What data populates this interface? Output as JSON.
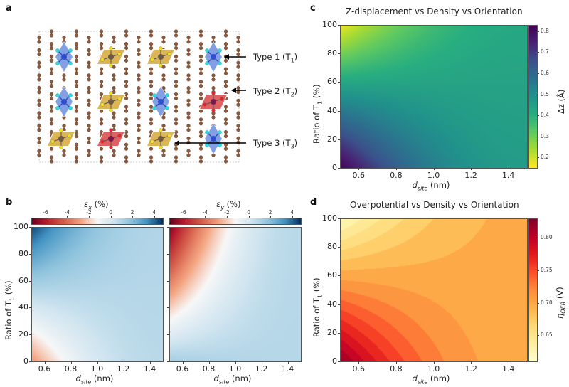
{
  "figure": {
    "panel_labels": [
      "a",
      "b",
      "c",
      "d"
    ]
  },
  "panel_a": {
    "type": "diagram",
    "description": "Graphene lattice with embedded metal sites of three coordination types",
    "annotations": [
      {
        "label": "Type 1 (T",
        "sub": "1",
        "suffix": ")"
      },
      {
        "label": "Type 2 (T",
        "sub": "2",
        "suffix": ")"
      },
      {
        "label": "Type 3 (T",
        "sub": "3",
        "suffix": ")"
      }
    ],
    "colors": {
      "carbon": "#8b5a3c",
      "type1_site": "#2f4fd0",
      "type1_ligand": "#35d6e0",
      "type1_polyhedron": "#6f8fe0",
      "type2_site": "#7a1a4a",
      "type2_ligand": "#e8202a",
      "type2_polyhedron": "#d94545",
      "type3_site": "#6e5a40",
      "type3_ligand": "#f0e020",
      "type3_polyhedron": "#d6a83a"
    },
    "sites": [
      {
        "type": 1,
        "row": 0,
        "col": 0
      },
      {
        "type": 3,
        "row": 0,
        "col": 1
      },
      {
        "type": 3,
        "row": 0,
        "col": 2
      },
      {
        "type": 1,
        "row": 0,
        "col": 3
      },
      {
        "type": 1,
        "row": 1,
        "col": 0
      },
      {
        "type": 3,
        "row": 1,
        "col": 1
      },
      {
        "type": 1,
        "row": 1,
        "col": 2
      },
      {
        "type": 2,
        "row": 1,
        "col": 3
      },
      {
        "type": 3,
        "row": 2,
        "col": 0
      },
      {
        "type": 2,
        "row": 2,
        "col": 1
      },
      {
        "type": 3,
        "row": 2,
        "col": 2
      },
      {
        "type": 1,
        "row": 2,
        "col": 3
      }
    ]
  },
  "chart_data": [
    {
      "id": "b-left",
      "type": "heatmap",
      "title": "",
      "colorbar_label": "ε_x (%)",
      "colorbar_label_main": "ε",
      "colorbar_label_sub": "x",
      "colorbar_label_suffix": " (%)",
      "colormap": "RdBu",
      "colorbar_range": [
        -7.3,
        4.8
      ],
      "colorbar_ticks": [
        "-6",
        "-4",
        "-2",
        "0",
        "2",
        "4"
      ],
      "xlabel_main": "d",
      "xlabel_sub": "site",
      "xlabel_suffix": " (nm)",
      "ylabel_main": "Ratio of T",
      "ylabel_sub": "1",
      "ylabel_suffix": " (%)",
      "xlim": [
        0.5,
        1.5
      ],
      "ylim": [
        0,
        100
      ],
      "xticks": [
        "0.6",
        "0.8",
        "1.0",
        "1.2",
        "1.4"
      ],
      "yticks": [
        "0",
        "20",
        "40",
        "60",
        "80",
        "100"
      ],
      "value_samples": {
        "corner_x0.5_y100": 4.5,
        "corner_x0.5_y0": -3.0,
        "corner_x1.5_y100": 1.0,
        "corner_x1.5_y0": 0.8
      }
    },
    {
      "id": "b-right",
      "type": "heatmap",
      "title": "",
      "colorbar_label": "ε_y (%)",
      "colorbar_label_main": "ε",
      "colorbar_label_sub": "y",
      "colorbar_label_suffix": " (%)",
      "colormap": "RdBu",
      "colorbar_range": [
        -7.3,
        4.8
      ],
      "colorbar_ticks": [
        "-6",
        "-4",
        "-2",
        "0",
        "2",
        "4"
      ],
      "xlabel_main": "d",
      "xlabel_sub": "site",
      "xlabel_suffix": " (nm)",
      "xlim": [
        0.5,
        1.5
      ],
      "ylim": [
        0,
        100
      ],
      "xticks": [
        "0.6",
        "0.8",
        "1.0",
        "1.2",
        "1.4"
      ],
      "yticks": [],
      "value_samples": {
        "corner_x0.5_y100": -7.0,
        "corner_x0.5_y0": 1.3,
        "corner_x1.5_y100": 0.8,
        "corner_x1.5_y0": 0.9
      }
    },
    {
      "id": "c",
      "type": "heatmap",
      "title": "Z-displacement vs Density vs Orientation",
      "colorbar_label": "Δz (Å)",
      "colormap": "viridis_r",
      "colorbar_range": [
        0.15,
        0.83
      ],
      "colorbar_ticks": [
        "0.2",
        "0.3",
        "0.4",
        "0.5",
        "0.6",
        "0.7",
        "0.8"
      ],
      "xlabel_main": "d",
      "xlabel_sub": "site",
      "xlabel_suffix": " (nm)",
      "ylabel_main": "Ratio of T",
      "ylabel_sub": "1",
      "ylabel_suffix": " (%)",
      "xlim": [
        0.5,
        1.5
      ],
      "ylim": [
        0,
        100
      ],
      "xticks": [
        "0.6",
        "0.8",
        "1.0",
        "1.2",
        "1.4"
      ],
      "yticks": [
        "0",
        "20",
        "40",
        "60",
        "80",
        "100"
      ],
      "value_samples": {
        "corner_x0.5_y100": 0.16,
        "corner_x0.5_y0": 0.82,
        "corner_x1.5_y100": 0.42,
        "corner_x1.5_y0": 0.46
      }
    },
    {
      "id": "d",
      "type": "heatmap",
      "title": "Overpotential vs Density vs Orientation",
      "colorbar_label": "η_OER (V)",
      "colorbar_label_main": "η",
      "colorbar_label_sub": "OER",
      "colorbar_label_suffix": " (V)",
      "colormap": "YlOrRd",
      "colorbar_range": [
        0.61,
        0.83
      ],
      "colorbar_ticks": [
        "0.65",
        "0.70",
        "0.75",
        "0.80"
      ],
      "xlabel_main": "d",
      "xlabel_sub": "site",
      "xlabel_suffix": " (nm)",
      "ylabel_main": "Ratio of T",
      "ylabel_sub": "1",
      "ylabel_suffix": " (%)",
      "xlim": [
        0.5,
        1.5
      ],
      "ylim": [
        0,
        100
      ],
      "xticks": [
        "0.6",
        "0.8",
        "1.0",
        "1.2",
        "1.4"
      ],
      "yticks": [
        "0",
        "20",
        "40",
        "60",
        "80",
        "100"
      ],
      "value_samples": {
        "corner_x0.5_y100": 0.62,
        "corner_x0.5_y0": 0.82,
        "corner_x1.5_y100": 0.695,
        "corner_x1.5_y0": 0.7
      }
    }
  ]
}
